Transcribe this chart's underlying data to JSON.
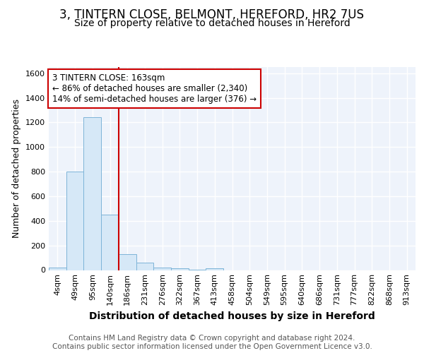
{
  "title": "3, TINTERN CLOSE, BELMONT, HEREFORD, HR2 7US",
  "subtitle": "Size of property relative to detached houses in Hereford",
  "xlabel": "Distribution of detached houses by size in Hereford",
  "ylabel": "Number of detached properties",
  "bins": [
    "4sqm",
    "49sqm",
    "95sqm",
    "140sqm",
    "186sqm",
    "231sqm",
    "276sqm",
    "322sqm",
    "367sqm",
    "413sqm",
    "458sqm",
    "504sqm",
    "549sqm",
    "595sqm",
    "640sqm",
    "686sqm",
    "731sqm",
    "777sqm",
    "822sqm",
    "868sqm",
    "913sqm"
  ],
  "values": [
    20,
    800,
    1240,
    450,
    130,
    60,
    20,
    12,
    5,
    15,
    0,
    0,
    0,
    0,
    0,
    0,
    0,
    0,
    0,
    0,
    0
  ],
  "bar_color": "#d6e8f7",
  "bar_edge_color": "#7db4d8",
  "vline_x": 3.5,
  "vline_color": "#cc0000",
  "annotation_text": "3 TINTERN CLOSE: 163sqm\n← 86% of detached houses are smaller (2,340)\n14% of semi-detached houses are larger (376) →",
  "annotation_box_color": "white",
  "annotation_box_edge": "#cc0000",
  "ylim": [
    0,
    1650
  ],
  "yticks": [
    0,
    200,
    400,
    600,
    800,
    1000,
    1200,
    1400,
    1600
  ],
  "footer1": "Contains HM Land Registry data © Crown copyright and database right 2024.",
  "footer2": "Contains public sector information licensed under the Open Government Licence v3.0.",
  "background_color": "#ffffff",
  "plot_background": "#eef3fb",
  "grid_color": "#ffffff",
  "title_fontsize": 12,
  "subtitle_fontsize": 10,
  "xlabel_fontsize": 10,
  "ylabel_fontsize": 9,
  "tick_fontsize": 8,
  "footer_fontsize": 7.5
}
